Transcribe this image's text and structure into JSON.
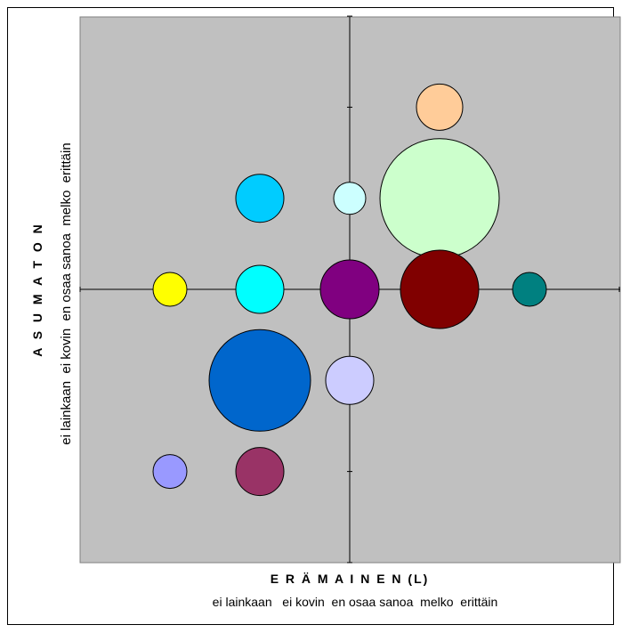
{
  "chart_data": {
    "type": "scatter",
    "subtype": "bubble",
    "title": "",
    "xlabel": "E R Ä M A I N E N (L)",
    "xtick_text": "ei lainkaan   ei kovin  en osaa sanoa  melko  erittäin",
    "ylabel": "A S U M A T O N",
    "ytick_text": "ei lainkaan  ei kovin  en osaa sanoa  melko  erittäin",
    "xlim": [
      -3,
      3
    ],
    "ylim": [
      -3,
      3
    ],
    "grid": false,
    "plot_background": "#c0c0c0",
    "points": [
      {
        "x": 1,
        "y": 2,
        "size": 26,
        "color": "#ffcc99"
      },
      {
        "x": 1,
        "y": 1,
        "size": 67,
        "color": "#ccffcc"
      },
      {
        "x": -1,
        "y": 1,
        "size": 27,
        "color": "#00ccff"
      },
      {
        "x": 0,
        "y": 1,
        "size": 18,
        "color": "#ccffff"
      },
      {
        "x": -2,
        "y": 0,
        "size": 19,
        "color": "#ffff00"
      },
      {
        "x": -1,
        "y": 0,
        "size": 27,
        "color": "#00ffff"
      },
      {
        "x": 0,
        "y": 0,
        "size": 33,
        "color": "#800080"
      },
      {
        "x": 1,
        "y": 0,
        "size": 44,
        "color": "#800000"
      },
      {
        "x": 2,
        "y": 0,
        "size": 19,
        "color": "#008080"
      },
      {
        "x": -1,
        "y": -1,
        "size": 57,
        "color": "#0066cc"
      },
      {
        "x": 0,
        "y": -1,
        "size": 27,
        "color": "#ccccff"
      },
      {
        "x": -2,
        "y": -2,
        "size": 19,
        "color": "#9999ff"
      },
      {
        "x": -1,
        "y": -2,
        "size": 27,
        "color": "#993366"
      }
    ]
  }
}
